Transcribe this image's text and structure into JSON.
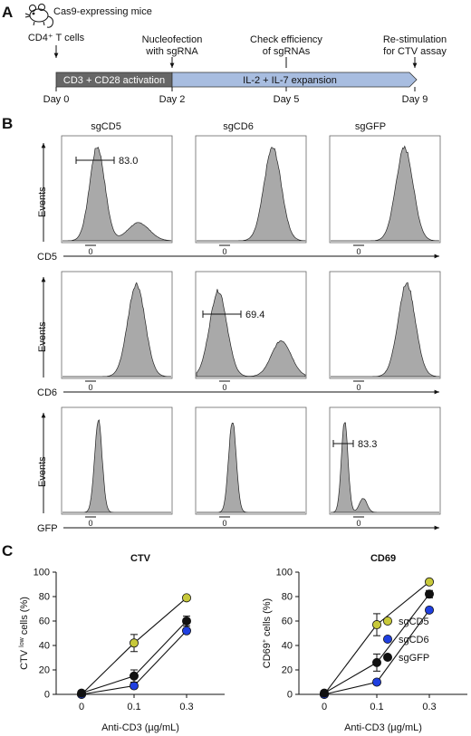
{
  "panel_a": {
    "letter": "A",
    "mouse_label": "Cas9-expressing mice",
    "cells_label": "CD4⁺ T cells",
    "activation_label": "CD3 + CD28 activation",
    "expansion_label": "IL-2 + IL-7 expansion",
    "events": [
      {
        "id": "nucleofection",
        "line1": "Nucleofection",
        "line2": "with sgRNA"
      },
      {
        "id": "check",
        "line1": "Check efficiency",
        "line2": "of sgRNAs"
      },
      {
        "id": "restim",
        "line1": "Re-stimulation",
        "line2": "for CTV assay"
      }
    ],
    "days": [
      "Day 0",
      "Day 2",
      "Day 5",
      "Day 9"
    ],
    "colors": {
      "activation": "#666666",
      "expansion": "#a8bde0"
    }
  },
  "panel_b": {
    "letter": "B",
    "column_titles": [
      "sgCD5",
      "sgCD6",
      "sgGFP"
    ],
    "row_axis_labels": [
      "CD5",
      "CD6",
      "GFP"
    ],
    "y_label": "Events",
    "zero_label": "0",
    "gates": [
      {
        "row": 0,
        "col": 0,
        "value": "83.0"
      },
      {
        "row": 1,
        "col": 1,
        "value": "69.4"
      },
      {
        "row": 2,
        "col": 2,
        "value": "83.3"
      }
    ],
    "fill_color": "#a9a9a9"
  },
  "panel_c": {
    "letter": "C",
    "legend": [
      "sgCD5",
      "sgCD6",
      "sgGFP"
    ]
  },
  "chart_data": [
    {
      "type": "line",
      "title": "CTV",
      "xlabel": "Anti-CD3 (µg/mL)",
      "ylabel": "CTV low cells (%)",
      "ylabel_parts": [
        "CTV ",
        "low",
        " cells (%)"
      ],
      "x_ticks": [
        "0",
        "0.1",
        "0.3"
      ],
      "ylim": [
        0,
        100
      ],
      "y_ticks": [
        "0",
        "20",
        "40",
        "60",
        "80",
        "100"
      ],
      "series": [
        {
          "name": "sgCD5",
          "color": "#c8c93a",
          "values": [
            0,
            42,
            79
          ],
          "errors": [
            0,
            7,
            1
          ]
        },
        {
          "name": "sgCD6",
          "color": "#1f3fe0",
          "values": [
            0,
            7,
            52
          ],
          "errors": [
            0,
            2,
            2
          ]
        },
        {
          "name": "sgGFP",
          "color": "#111111",
          "values": [
            1,
            15,
            60
          ],
          "errors": [
            0,
            5,
            4
          ]
        }
      ]
    },
    {
      "type": "line",
      "title": "CD69",
      "xlabel": "Anti-CD3 (µg/mL)",
      "ylabel": "CD69+ cells (%)",
      "ylabel_parts": [
        "CD69",
        "+",
        " cells (%)"
      ],
      "x_ticks": [
        "0",
        "0.1",
        "0.3"
      ],
      "ylim": [
        0,
        100
      ],
      "y_ticks": [
        "0",
        "20",
        "40",
        "60",
        "80",
        "100"
      ],
      "series": [
        {
          "name": "sgCD5",
          "color": "#c8c93a",
          "values": [
            0,
            57,
            92
          ],
          "errors": [
            0,
            9,
            1
          ]
        },
        {
          "name": "sgCD6",
          "color": "#1f3fe0",
          "values": [
            0,
            10,
            69
          ],
          "errors": [
            0,
            2,
            2
          ]
        },
        {
          "name": "sgGFP",
          "color": "#111111",
          "values": [
            1,
            26,
            82
          ],
          "errors": [
            0,
            7,
            3
          ]
        }
      ]
    }
  ]
}
